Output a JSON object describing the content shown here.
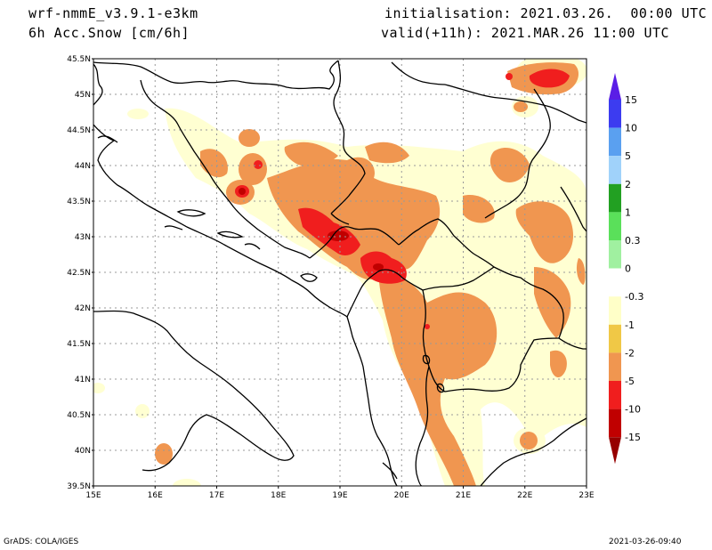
{
  "header": {
    "model": "wrf-nmmE_v3.9.1-e3km",
    "field": "6h Acc.Snow [cm/6h]",
    "initialisation": "initialisation: 2021.03.26.  00:00 UTC",
    "valid": "valid(+11h): 2021.MAR.26 11:00 UTC"
  },
  "footer": {
    "credit": "GrADS: COLA/IGES",
    "timestamp": "2021-03-26-09:40"
  },
  "axes": {
    "lon_labels": [
      "15E",
      "16E",
      "17E",
      "18E",
      "19E",
      "20E",
      "21E",
      "22E",
      "23E"
    ],
    "lat_labels": [
      "45.5N",
      "45N",
      "44.5N",
      "44N",
      "43.5N",
      "43N",
      "42.5N",
      "42N",
      "41.5N",
      "41N",
      "40.5N",
      "40N",
      "39.5N"
    ]
  },
  "colorbar": {
    "labels": [
      "15",
      "10",
      "5",
      "2",
      "1",
      "0.3",
      "0",
      "-0.3",
      "-1",
      "-2",
      "-5",
      "-10",
      "-15"
    ],
    "colors": [
      "#5a1ee6",
      "#3c3cf0",
      "#5aa0f0",
      "#a0d2fa",
      "#22a022",
      "#5ae05a",
      "#a0f0a0",
      "#ffffff",
      "#ffffc8",
      "#f0c846",
      "#f09650",
      "#f01e1e",
      "#c00000",
      "#960000"
    ]
  },
  "snow_colors": {
    "light": "#ffffd2",
    "moderate": "#f0c846",
    "heavy": "#f09650",
    "very_heavy": "#f01e1e",
    "extreme": "#c00000"
  }
}
